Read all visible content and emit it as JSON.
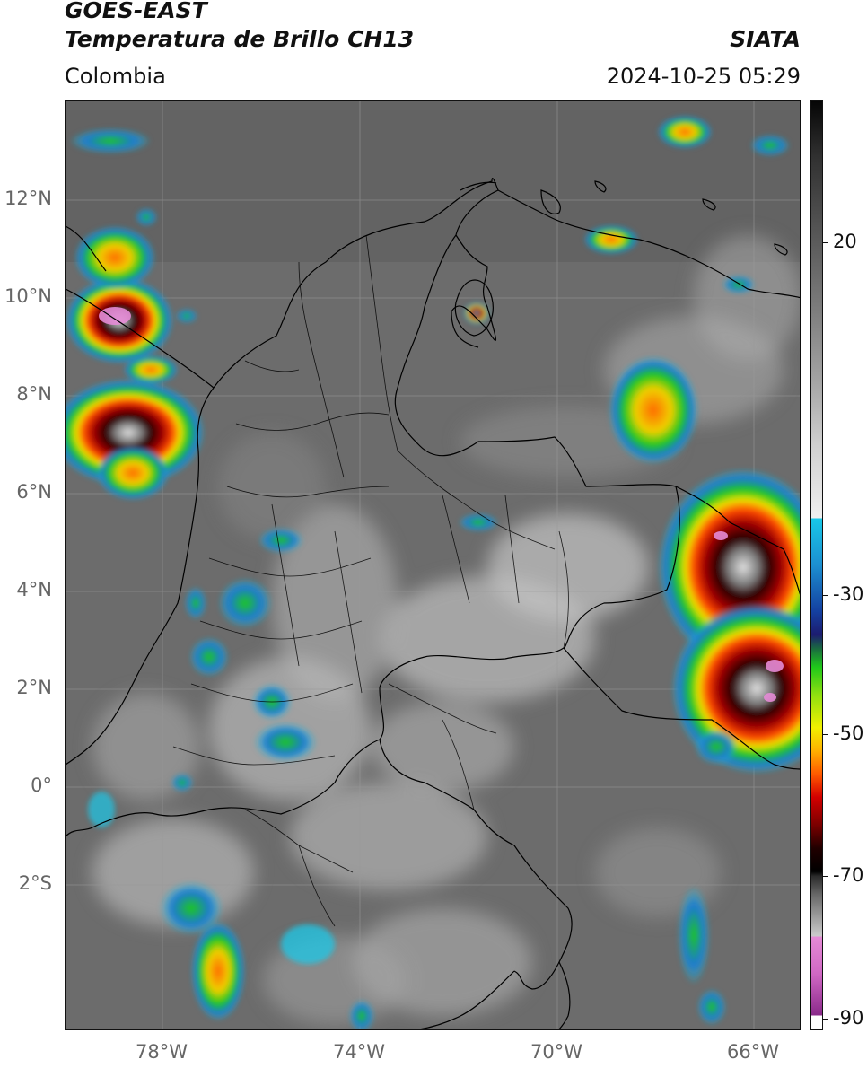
{
  "header": {
    "title_line1": "GOES-EAST",
    "title_line2": "Temperatura de Brillo CH13",
    "region": "Colombia",
    "source": "SIATA",
    "timestamp": "2024-10-25 05:29"
  },
  "map": {
    "lat_labels": [
      "12°N",
      "10°N",
      "8°N",
      "6°N",
      "4°N",
      "2°N",
      "0°",
      "2°S"
    ],
    "lon_labels": [
      "78°W",
      "74°W",
      "70°W",
      "66°W"
    ],
    "extent_lon": [
      -79.6,
      -64.9
    ],
    "extent_lat": [
      -4.9,
      14.0
    ],
    "gridlines": true
  },
  "colorbar": {
    "tick_labels": [
      "20",
      "-30",
      "-50",
      "-70",
      "-90"
    ],
    "tick_values": [
      20,
      -30,
      -50,
      -70,
      -90
    ],
    "range": [
      35,
      -92
    ]
  },
  "colors": {
    "background_land_sea": "#6e6e6e",
    "border_lines": "#000000",
    "cold_cloud_palette": [
      "#18c8e8",
      "#1440a0",
      "#1fc81a",
      "#f0f000",
      "#ff5a00",
      "#d40000",
      "#200000",
      "#e58bd6"
    ]
  }
}
